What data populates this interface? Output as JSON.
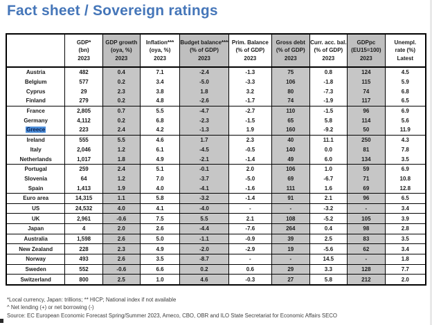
{
  "title": "Fact sheet / Sovereign ratings",
  "accent_color": "#4576b9",
  "shade_color": "#c6c6c6",
  "highlight_color": "#4d8fdb",
  "table": {
    "columns": [
      {
        "label": "",
        "unit": "",
        "year": "",
        "shaded": false,
        "width": "14%"
      },
      {
        "label": "GDP*",
        "unit": "(bn)",
        "year": "2023",
        "shaded": false,
        "width": "9%"
      },
      {
        "label": "GDP growth",
        "unit": "(oya, %)",
        "year": "2023",
        "shaded": true,
        "width": "8.9%"
      },
      {
        "label": "Inflation***",
        "unit": "(oya, %)",
        "year": "2023",
        "shaded": false,
        "width": "9.5%"
      },
      {
        "label": "Budget balance****",
        "unit": "(% of GDP)",
        "year": "2023",
        "shaded": true,
        "width": "11.6%"
      },
      {
        "label": "Prim. Balance",
        "unit": "(% of GDP)",
        "year": "2023",
        "shaded": false,
        "width": "10.3%"
      },
      {
        "label": "Gross debt",
        "unit": "(% of GDP)",
        "year": "2023",
        "shaded": true,
        "width": "9%"
      },
      {
        "label": "Curr. acc. bal.",
        "unit": "(% of GDP)",
        "year": "2023",
        "shaded": false,
        "width": "9%"
      },
      {
        "label": "GDPpc",
        "unit": "(EU15=100)",
        "year": "2023",
        "shaded": true,
        "width": "9%"
      },
      {
        "label": "Unempl.",
        "unit": "rate (%)",
        "year": "Latest",
        "shaded": false,
        "width": "9.7%"
      }
    ],
    "rows": [
      {
        "country": "Austria",
        "highlighted": false,
        "group_end": false,
        "values": [
          "482",
          "0.4",
          "7.1",
          "-2.4",
          "-1.3",
          "75",
          "0.8",
          "124",
          "4.5"
        ]
      },
      {
        "country": "Belgium",
        "highlighted": false,
        "group_end": false,
        "values": [
          "577",
          "0.2",
          "3.4",
          "-5.0",
          "-3.3",
          "106",
          "-1.8",
          "115",
          "5.9"
        ]
      },
      {
        "country": "Cyprus",
        "highlighted": false,
        "group_end": false,
        "values": [
          "29",
          "2.3",
          "3.8",
          "1.8",
          "3.2",
          "80",
          "-7.3",
          "74",
          "6.8"
        ]
      },
      {
        "country": "Finland",
        "highlighted": false,
        "group_end": true,
        "values": [
          "279",
          "0.2",
          "4.8",
          "-2.6",
          "-1.7",
          "74",
          "-1.9",
          "117",
          "6.5"
        ]
      },
      {
        "country": "France",
        "highlighted": false,
        "group_end": false,
        "values": [
          "2,805",
          "0.7",
          "5.5",
          "-4.7",
          "-2.7",
          "110",
          "-1.5",
          "96",
          "6.9"
        ]
      },
      {
        "country": "Germany",
        "highlighted": false,
        "group_end": false,
        "values": [
          "4,112",
          "0.2",
          "6.8",
          "-2.3",
          "-1.5",
          "65",
          "5.8",
          "114",
          "5.6"
        ]
      },
      {
        "country": "Greece",
        "highlighted": true,
        "group_end": true,
        "values": [
          "223",
          "2.4",
          "4.2",
          "-1.3",
          "1.9",
          "160",
          "-9.2",
          "50",
          "11.9"
        ]
      },
      {
        "country": "Ireland",
        "highlighted": false,
        "group_end": false,
        "values": [
          "555",
          "5.5",
          "4.6",
          "1.7",
          "2.3",
          "40",
          "11.1",
          "250",
          "4.3"
        ]
      },
      {
        "country": "Italy",
        "highlighted": false,
        "group_end": false,
        "values": [
          "2,046",
          "1.2",
          "6.1",
          "-4.5",
          "-0.5",
          "140",
          "0.0",
          "81",
          "7.8"
        ]
      },
      {
        "country": "Netherlands",
        "highlighted": false,
        "group_end": true,
        "values": [
          "1,017",
          "1.8",
          "4.9",
          "-2.1",
          "-1.4",
          "49",
          "6.0",
          "134",
          "3.5"
        ]
      },
      {
        "country": "Portugal",
        "highlighted": false,
        "group_end": false,
        "values": [
          "259",
          "2.4",
          "5.1",
          "-0.1",
          "2.0",
          "106",
          "1.0",
          "59",
          "6.9"
        ]
      },
      {
        "country": "Slovenia",
        "highlighted": false,
        "group_end": false,
        "values": [
          "64",
          "1.2",
          "7.0",
          "-3.7",
          "-5.0",
          "69",
          "-6.7",
          "71",
          "10.8"
        ]
      },
      {
        "country": "Spain",
        "highlighted": false,
        "group_end": true,
        "values": [
          "1,413",
          "1.9",
          "4.0",
          "-4.1",
          "-1.6",
          "111",
          "1.6",
          "69",
          "12.8"
        ]
      },
      {
        "country": "Euro area",
        "highlighted": false,
        "group_end": true,
        "values": [
          "14,315",
          "1.1",
          "5.8",
          "-3.2",
          "-1.4",
          "91",
          "2.1",
          "96",
          "6.5"
        ]
      },
      {
        "country": "US",
        "highlighted": false,
        "group_end": true,
        "values": [
          "24,532",
          "4.0",
          "4.1",
          "-4.0",
          "-",
          "-",
          "-3.2",
          "-",
          "3.4"
        ]
      },
      {
        "country": "UK",
        "highlighted": false,
        "group_end": true,
        "values": [
          "2,961",
          "-0.6",
          "7.5",
          "5.5",
          "2.1",
          "108",
          "-5.2",
          "105",
          "3.9"
        ]
      },
      {
        "country": "Japan",
        "highlighted": false,
        "group_end": true,
        "values": [
          "4",
          "2.0",
          "2.6",
          "-4.4",
          "-7.6",
          "264",
          "0.4",
          "98",
          "2.8"
        ]
      },
      {
        "country": "Australia",
        "highlighted": false,
        "group_end": true,
        "values": [
          "1,598",
          "2.6",
          "5.0",
          "-1.1",
          "-0.9",
          "39",
          "2.5",
          "83",
          "3.5"
        ]
      },
      {
        "country": "New Zealand",
        "highlighted": false,
        "group_end": true,
        "values": [
          "228",
          "2.3",
          "4.9",
          "-2.0",
          "-2.9",
          "19",
          "-5.6",
          "62",
          "3.4"
        ]
      },
      {
        "country": "Norway",
        "highlighted": false,
        "group_end": true,
        "values": [
          "493",
          "2.6",
          "3.5",
          "-8.7",
          "-",
          "-",
          "14.5",
          "-",
          "1.8"
        ]
      },
      {
        "country": "Sweden",
        "highlighted": false,
        "group_end": true,
        "values": [
          "552",
          "-0.6",
          "6.6",
          "0.2",
          "0.6",
          "29",
          "3.3",
          "128",
          "7.7"
        ]
      },
      {
        "country": "Switzerland",
        "highlighted": false,
        "group_end": false,
        "values": [
          "800",
          "2.5",
          "1.0",
          "4.6",
          "-0.3",
          "27",
          "5.8",
          "212",
          "2.0"
        ]
      }
    ]
  },
  "footnotes": [
    "*Local currency, Japan: trillions; ** HICP; National index if not available",
    "^ Net lending (+) or net borrowing (-)",
    "Source: EC European Economic Forecast Spring/Summer 2023, Ameco, CBO, OBR and ILO State Secretariat for Economic Affairs SECO"
  ]
}
